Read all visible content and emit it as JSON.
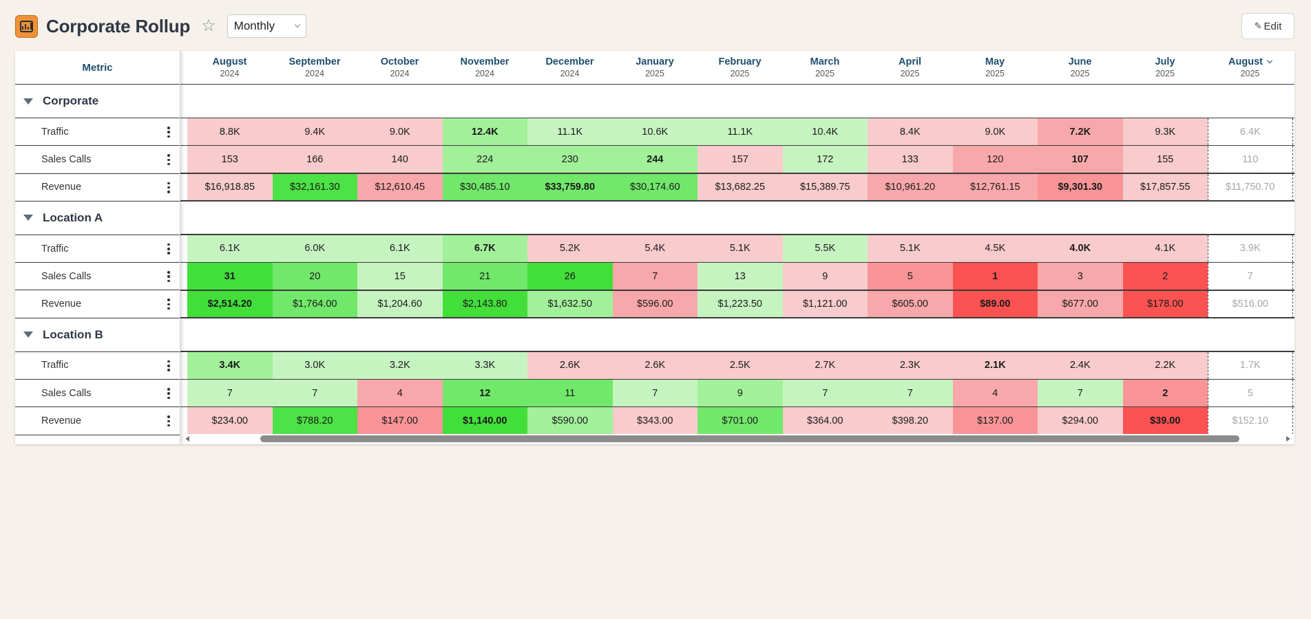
{
  "header": {
    "title": "Corporate Rollup",
    "app_icon": "bar-chart-icon",
    "favorite_icon": "star-outline-icon",
    "period_select": {
      "selected": "Monthly"
    },
    "edit_label": "Edit",
    "edit_icon": "pencil-icon"
  },
  "grid": {
    "metric_header": "Metric",
    "columns": [
      {
        "month": "August",
        "year": "2024"
      },
      {
        "month": "September",
        "year": "2024"
      },
      {
        "month": "October",
        "year": "2024"
      },
      {
        "month": "November",
        "year": "2024"
      },
      {
        "month": "December",
        "year": "2024"
      },
      {
        "month": "January",
        "year": "2025"
      },
      {
        "month": "February",
        "year": "2025"
      },
      {
        "month": "March",
        "year": "2025"
      },
      {
        "month": "April",
        "year": "2025"
      },
      {
        "month": "May",
        "year": "2025"
      },
      {
        "month": "June",
        "year": "2025"
      },
      {
        "month": "July",
        "year": "2025"
      },
      {
        "month": "August",
        "year": "2025"
      }
    ],
    "groups": [
      {
        "label": "Corporate",
        "rows": [
          {
            "metric": "Traffic",
            "values": [
              "8.8K",
              "9.4K",
              "9.0K",
              "12.4K",
              "11.1K",
              "10.6K",
              "11.1K",
              "10.4K",
              "8.4K",
              "9.0K",
              "7.2K",
              "9.3K",
              "6.4K"
            ],
            "colors": [
              "#f8cbcc",
              "#f8cbcc",
              "#f8cbcc",
              "#a2f09a",
              "#c6f4c1",
              "#c6f4c1",
              "#c6f4c1",
              "#c6f4c1",
              "#f8cbcc",
              "#f8cbcc",
              "#f8a8aa",
              "#f8cbcc",
              "#ffffff"
            ],
            "bold": [
              3,
              10
            ]
          },
          {
            "metric": "Sales Calls",
            "values": [
              "153",
              "166",
              "140",
              "224",
              "230",
              "244",
              "157",
              "172",
              "133",
              "120",
              "107",
              "155",
              "110"
            ],
            "colors": [
              "#f8cbcc",
              "#f8cbcc",
              "#f8cbcc",
              "#a2f09a",
              "#a2f09a",
              "#a2f09a",
              "#f8cbcc",
              "#c6f4c1",
              "#f8cbcc",
              "#f8a8aa",
              "#f8a8aa",
              "#f8cbcc",
              "#ffffff"
            ],
            "bold": [
              5,
              10
            ]
          },
          {
            "metric": "Revenue",
            "values": [
              "$16,918.85",
              "$32,161.30",
              "$12,610.45",
              "$30,485.10",
              "$33,759.80",
              "$30,174.60",
              "$13,682.25",
              "$15,389.75",
              "$10,961.20",
              "$12,761.15",
              "$9,301.30",
              "$17,857.55",
              "$11,750.70"
            ],
            "colors": [
              "#f8cbcc",
              "#4de246",
              "#f8a8aa",
              "#71e86a",
              "#71e86a",
              "#71e86a",
              "#f8cbcc",
              "#f8cbcc",
              "#f8a8aa",
              "#f8a8aa",
              "#f89497",
              "#f8cbcc",
              "#ffffff"
            ],
            "bold": [
              4,
              10
            ]
          }
        ]
      },
      {
        "label": "Location A",
        "rows": [
          {
            "metric": "Traffic",
            "values": [
              "6.1K",
              "6.0K",
              "6.1K",
              "6.7K",
              "5.2K",
              "5.4K",
              "5.1K",
              "5.5K",
              "5.1K",
              "4.5K",
              "4.0K",
              "4.1K",
              "3.9K"
            ],
            "colors": [
              "#c6f4c1",
              "#c6f4c1",
              "#c6f4c1",
              "#a2f09a",
              "#f8cbcc",
              "#f8cbcc",
              "#f8cbcc",
              "#c6f4c1",
              "#f8cbcc",
              "#f8cbcc",
              "#f8cbcc",
              "#f8cbcc",
              "#ffffff"
            ],
            "bold": [
              3,
              10
            ]
          },
          {
            "metric": "Sales Calls",
            "values": [
              "31",
              "20",
              "15",
              "21",
              "26",
              "7",
              "13",
              "9",
              "5",
              "1",
              "3",
              "2",
              "7"
            ],
            "colors": [
              "#42de3a",
              "#71e86a",
              "#c6f4c1",
              "#71e86a",
              "#42de3a",
              "#f8a8aa",
              "#c6f4c1",
              "#f8cbcc",
              "#f89497",
              "#fc5352",
              "#f8a8aa",
              "#fc5352",
              "#ffffff"
            ],
            "bold": [
              0,
              9
            ]
          },
          {
            "metric": "Revenue",
            "values": [
              "$2,514.20",
              "$1,764.00",
              "$1,204.60",
              "$2,143.80",
              "$1,632.50",
              "$596.00",
              "$1,223.50",
              "$1,121.00",
              "$605.00",
              "$89.00",
              "$677.00",
              "$178.00",
              "$516.00"
            ],
            "colors": [
              "#42de3a",
              "#71e86a",
              "#c6f4c1",
              "#42de3a",
              "#a2f09a",
              "#f8a8aa",
              "#c6f4c1",
              "#f8cbcc",
              "#f8a8aa",
              "#fc5352",
              "#f8a8aa",
              "#fc5352",
              "#ffffff"
            ],
            "bold": [
              0,
              9
            ]
          }
        ]
      },
      {
        "label": "Location B",
        "rows": [
          {
            "metric": "Traffic",
            "values": [
              "3.4K",
              "3.0K",
              "3.2K",
              "3.3K",
              "2.6K",
              "2.6K",
              "2.5K",
              "2.7K",
              "2.3K",
              "2.1K",
              "2.4K",
              "2.2K",
              "1.7K"
            ],
            "colors": [
              "#a2f09a",
              "#c6f4c1",
              "#c6f4c1",
              "#c6f4c1",
              "#f8cbcc",
              "#f8cbcc",
              "#f8cbcc",
              "#f8cbcc",
              "#f8cbcc",
              "#f8cbcc",
              "#f8cbcc",
              "#f8cbcc",
              "#ffffff"
            ],
            "bold": [
              0,
              9
            ]
          },
          {
            "metric": "Sales Calls",
            "values": [
              "7",
              "7",
              "4",
              "12",
              "11",
              "7",
              "9",
              "7",
              "7",
              "4",
              "7",
              "2",
              "5"
            ],
            "colors": [
              "#c6f4c1",
              "#c6f4c1",
              "#f8a8aa",
              "#71e86a",
              "#71e86a",
              "#c6f4c1",
              "#a2f09a",
              "#c6f4c1",
              "#c6f4c1",
              "#f8a8aa",
              "#c6f4c1",
              "#f89497",
              "#ffffff"
            ],
            "bold": [
              3,
              11
            ]
          },
          {
            "metric": "Revenue",
            "values": [
              "$234.00",
              "$788.20",
              "$147.00",
              "$1,140.00",
              "$590.00",
              "$343.00",
              "$701.00",
              "$364.00",
              "$398.20",
              "$137.00",
              "$294.00",
              "$39.00",
              "$152.10"
            ],
            "colors": [
              "#f8cbcc",
              "#4de246",
              "#f89497",
              "#42de3a",
              "#a2f09a",
              "#f8cbcc",
              "#71e86a",
              "#f8cbcc",
              "#f8cbcc",
              "#f89497",
              "#f8cbcc",
              "#fc5352",
              "#ffffff"
            ],
            "bold": [
              3,
              11
            ]
          }
        ]
      }
    ]
  }
}
